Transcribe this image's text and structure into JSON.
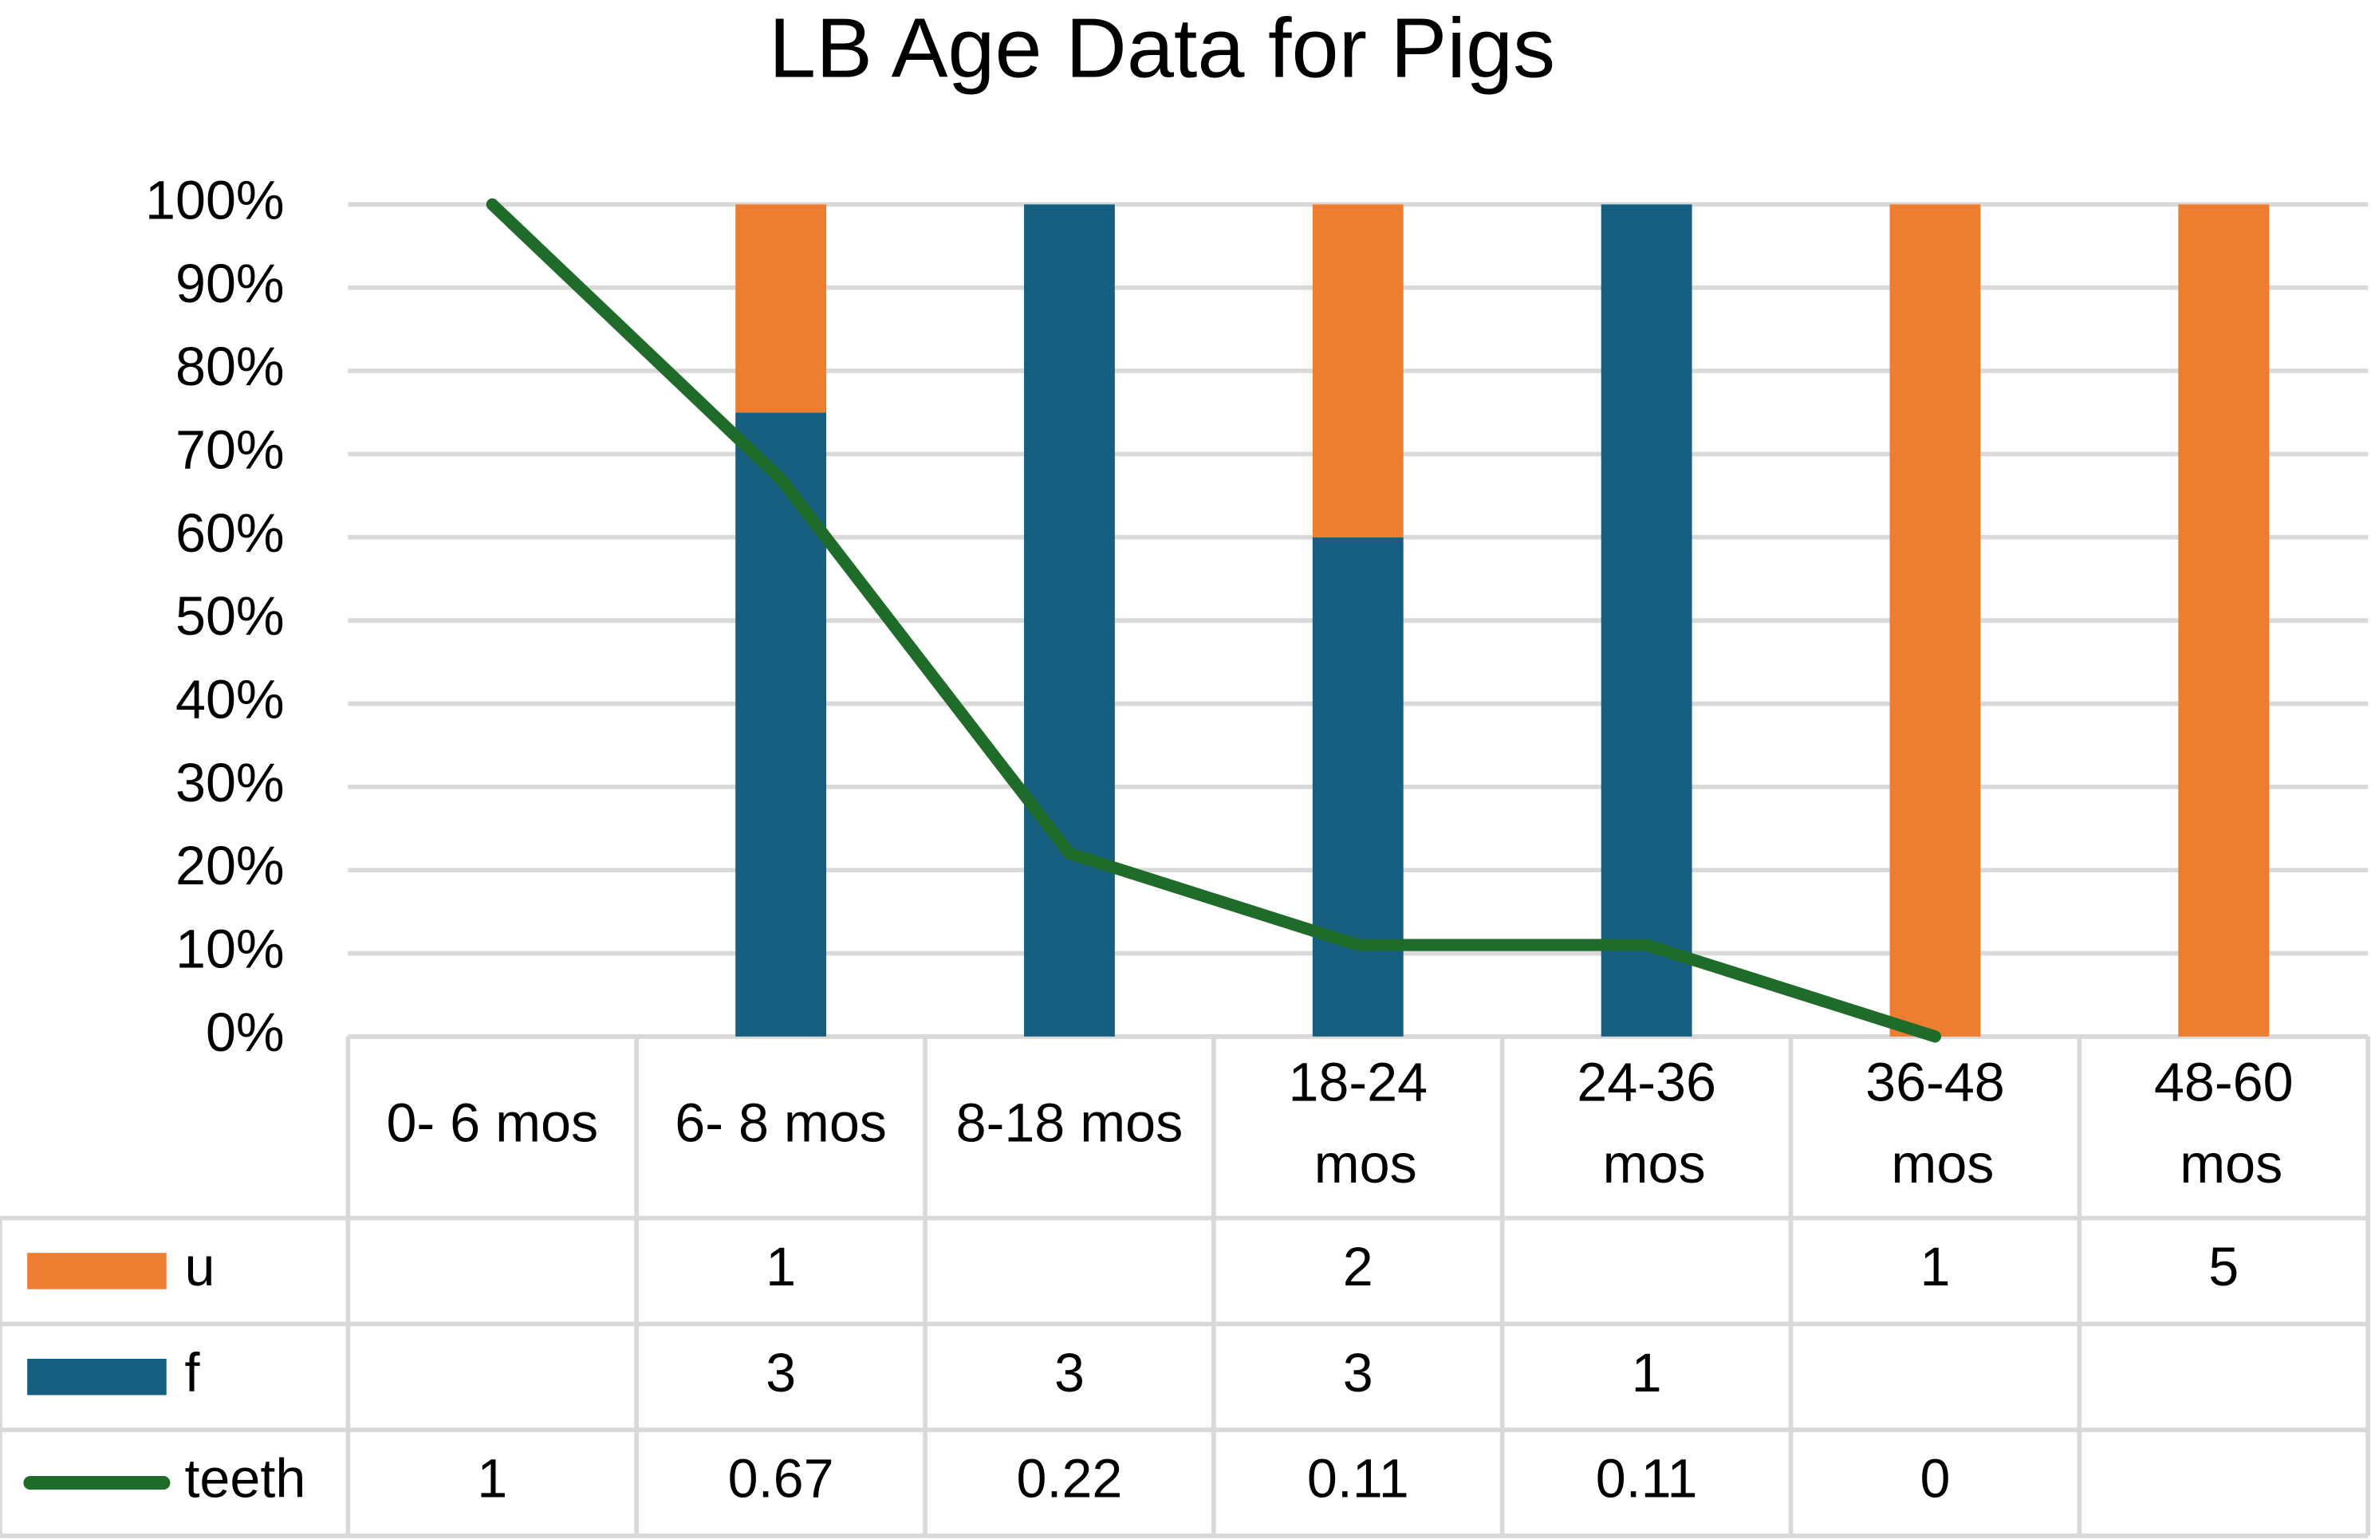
{
  "chart_data": {
    "type": "percent_stacked_bar_line",
    "title": "LB Age Data for Pigs",
    "categories": [
      "0- 6 mos",
      "6- 8 mos",
      "8-18 mos",
      "18-24 mos",
      "24-36 mos",
      "36-48 mos",
      "48-60 mos"
    ],
    "series": [
      {
        "name": "u",
        "color": "#ed7d31",
        "type": "bar",
        "values": [
          null,
          1,
          null,
          2,
          null,
          1,
          5
        ]
      },
      {
        "name": "f",
        "color": "#175f80",
        "type": "bar",
        "values": [
          null,
          3,
          3,
          3,
          1,
          null,
          null
        ]
      },
      {
        "name": "teeth",
        "color": "#1e6b2a",
        "type": "line",
        "values": [
          1,
          0.67,
          0.22,
          0.11,
          0.11,
          0,
          null
        ]
      }
    ],
    "ylim": [
      0,
      1
    ],
    "yticks": [
      {
        "value": 0,
        "label": "0%"
      },
      {
        "value": 0.1,
        "label": "10%"
      },
      {
        "value": 0.2,
        "label": "20%"
      },
      {
        "value": 0.3,
        "label": "30%"
      },
      {
        "value": 0.4,
        "label": "40%"
      },
      {
        "value": 0.5,
        "label": "50%"
      },
      {
        "value": 0.6,
        "label": "60%"
      },
      {
        "value": 0.7,
        "label": "70%"
      },
      {
        "value": 0.8,
        "label": "80%"
      },
      {
        "value": 0.9,
        "label": "90%"
      },
      {
        "value": 1,
        "label": "100%"
      }
    ],
    "grid": true,
    "data_table": true
  }
}
